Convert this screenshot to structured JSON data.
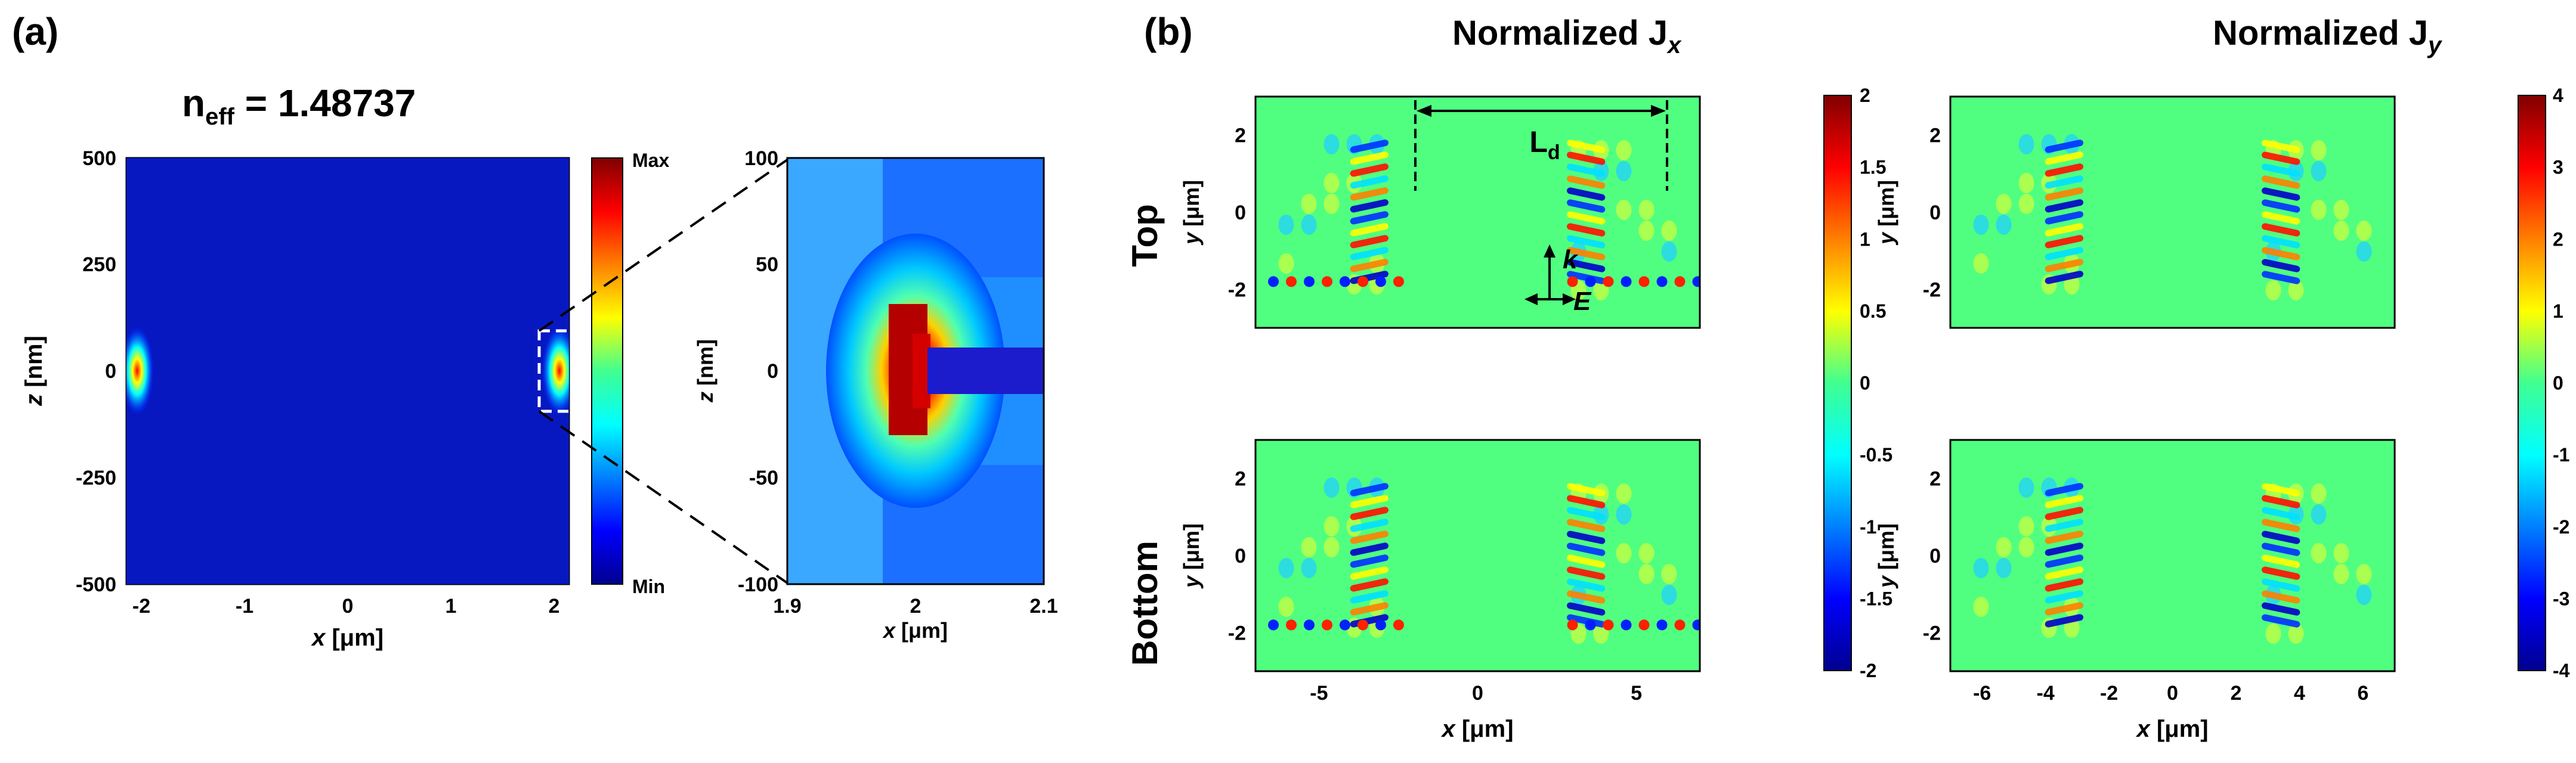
{
  "panel_a": {
    "label": "(a)",
    "neff_title": "n",
    "neff_sub": "eff",
    "neff_value": " = 1.48737",
    "main": {
      "xlabel_var": "x",
      "xlabel_unit": " [μm]",
      "ylabel_var": "z",
      "ylabel_unit": " [nm]",
      "xticks": [
        "-2",
        "-1",
        "0",
        "1",
        "2"
      ],
      "yticks": [
        "500",
        "250",
        "0",
        "-250",
        "-500"
      ],
      "xlim": [
        -2.2,
        2.2
      ],
      "ylim": [
        -500,
        500
      ]
    },
    "colorbar": {
      "max_label": "Max",
      "min_label": "Min"
    },
    "zoom": {
      "xlabel_var": "x",
      "xlabel_unit": " [μm]",
      "ylabel_var": "z",
      "ylabel_unit": " [nm]",
      "xticks": [
        "1.9",
        "2",
        "2.1"
      ],
      "yticks": [
        "100",
        "50",
        "0",
        "-50",
        "-100"
      ],
      "xlim": [
        1.9,
        2.1
      ],
      "ylim": [
        -100,
        100
      ]
    }
  },
  "panel_b": {
    "label": "(b)",
    "col_title_jx": "Normalized J",
    "col_title_jx_sub": "x",
    "col_title_jy": "Normalized J",
    "col_title_jy_sub": "y",
    "row_top": "Top",
    "row_bottom": "Bottom",
    "ylabel_var": "y",
    "ylabel_unit": " [μm]",
    "xlabel_var": "x",
    "xlabel_unit": " [μm]",
    "yticks": [
      "2",
      "0",
      "-2"
    ],
    "jx_xticks": [
      "-5",
      "0",
      "5"
    ],
    "jy_xticks": [
      "-6",
      "-4",
      "-2",
      "0",
      "2",
      "4",
      "6"
    ],
    "cb_jx_ticks": [
      "2",
      "1.5",
      "1",
      "0.5",
      "0",
      "-0.5",
      "-1",
      "-1.5",
      "-2"
    ],
    "cb_jy_ticks": [
      "4",
      "3",
      "2",
      "1",
      "0",
      "-1",
      "-2",
      "-3",
      "-4"
    ],
    "annot_ld": "L",
    "annot_ld_sub": "d",
    "annot_k": "k",
    "annot_e": "E"
  },
  "chart_data": [
    {
      "type": "heatmap",
      "title": "n_eff = 1.48737",
      "xlabel": "x [μm]",
      "ylabel": "z [nm]",
      "xlim": [
        -2.2,
        2.2
      ],
      "ylim": [
        -500,
        500
      ],
      "colorbar": [
        "Min",
        "Max"
      ],
      "hotspots_x": [
        -2,
        2
      ]
    },
    {
      "type": "heatmap",
      "title": "zoom",
      "xlabel": "x [μm]",
      "ylabel": "z [nm]",
      "xlim": [
        1.9,
        2.1
      ],
      "ylim": [
        -100,
        100
      ]
    },
    {
      "type": "heatmap",
      "title": "Normalized Jx",
      "rows": [
        "Top",
        "Bottom"
      ],
      "xlabel": "x [μm]",
      "ylabel": "y [μm]",
      "xlim": [
        -7,
        7
      ],
      "ylim": [
        -3,
        3
      ],
      "clim": [
        -2,
        2
      ]
    },
    {
      "type": "heatmap",
      "title": "Normalized Jy",
      "rows": [
        "Top",
        "Bottom"
      ],
      "xlabel": "x [μm]",
      "ylabel": "y [μm]",
      "xlim": [
        -7,
        7
      ],
      "ylim": [
        -3,
        3
      ],
      "clim": [
        -4,
        4
      ]
    }
  ]
}
